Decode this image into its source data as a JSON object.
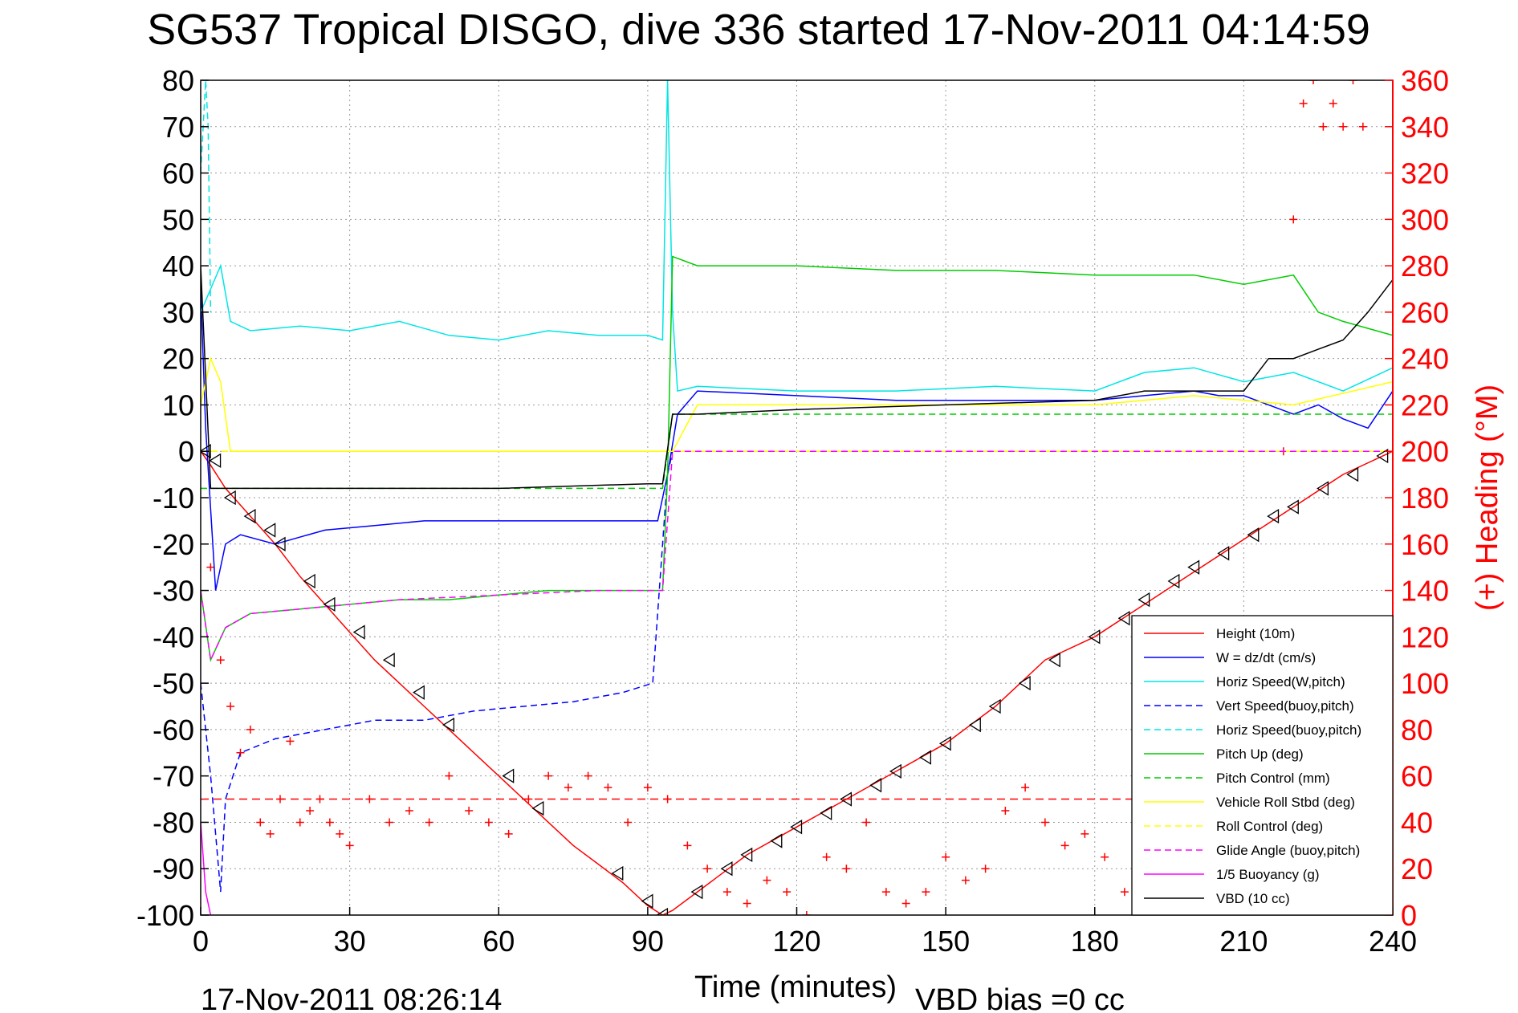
{
  "chart_data": {
    "type": "line",
    "title": "SG537 Tropical DISGO, dive 336 started 17-Nov-2011 04:14:59",
    "xlabel": "Time (minutes)",
    "ylabel": "",
    "y2label": "(+) Heading (°M)",
    "footer_left": "17-Nov-2011 08:26:14",
    "footer_right": "VBD bias =0 cc",
    "xlim": [
      0,
      240
    ],
    "ylim": [
      -100,
      80
    ],
    "y2lim": [
      0,
      360
    ],
    "xticks": [
      0,
      30,
      60,
      90,
      120,
      150,
      180,
      210,
      240
    ],
    "yticks": [
      80,
      70,
      60,
      50,
      40,
      30,
      20,
      10,
      0,
      -10,
      -20,
      -30,
      -40,
      -50,
      -60,
      -70,
      -80,
      -90,
      -100
    ],
    "y2ticks": [
      360,
      340,
      320,
      300,
      280,
      260,
      240,
      220,
      200,
      180,
      160,
      140,
      120,
      100,
      80,
      60,
      40,
      20,
      0
    ],
    "grid": true,
    "legend_position": "lower-right",
    "series": [
      {
        "name": "Height (10m)",
        "color": "#ff0000",
        "style": "solid",
        "x": [
          0,
          2,
          5,
          10,
          15,
          20,
          25,
          30,
          35,
          40,
          45,
          50,
          55,
          60,
          65,
          70,
          75,
          80,
          85,
          90,
          93,
          95,
          100,
          110,
          120,
          130,
          140,
          150,
          160,
          170,
          180,
          190,
          200,
          210,
          220,
          230,
          240
        ],
        "y": [
          0,
          -3,
          -8,
          -14,
          -20,
          -27,
          -33,
          -39,
          -45,
          -50,
          -55,
          -60,
          -65,
          -70,
          -75,
          -80,
          -85,
          -89,
          -93,
          -98,
          -100,
          -99,
          -95,
          -87,
          -81,
          -75,
          -69,
          -63,
          -55,
          -45,
          -40,
          -33,
          -26,
          -19,
          -12,
          -5,
          0
        ]
      },
      {
        "name": "W = dz/dt (cm/s)",
        "color": "#0000ff",
        "style": "solid",
        "x": [
          0,
          1,
          3,
          5,
          8,
          15,
          25,
          35,
          45,
          55,
          65,
          75,
          85,
          92,
          94,
          96,
          100,
          120,
          140,
          160,
          180,
          190,
          200,
          205,
          210,
          215,
          220,
          225,
          230,
          235,
          240
        ],
        "y": [
          35,
          5,
          -30,
          -20,
          -18,
          -20,
          -17,
          -16,
          -15,
          -15,
          -15,
          -15,
          -15,
          -15,
          -5,
          8,
          13,
          12,
          11,
          11,
          11,
          12,
          13,
          12,
          12,
          10,
          8,
          10,
          7,
          5,
          13
        ]
      },
      {
        "name": "Horiz Speed(W,pitch)",
        "color": "#00e5e5",
        "style": "solid",
        "x": [
          0,
          2,
          4,
          6,
          10,
          20,
          30,
          40,
          50,
          60,
          70,
          80,
          90,
          93,
          94,
          95,
          96,
          100,
          120,
          140,
          160,
          180,
          190,
          200,
          210,
          220,
          230,
          240
        ],
        "y": [
          30,
          35,
          40,
          28,
          26,
          27,
          26,
          28,
          25,
          24,
          26,
          25,
          25,
          24,
          80,
          30,
          13,
          14,
          13,
          13,
          14,
          13,
          17,
          18,
          15,
          17,
          13,
          18
        ]
      },
      {
        "name": "Vert Speed(buoy,pitch)",
        "color": "#0000ff",
        "style": "dashed",
        "x": [
          0,
          2,
          4,
          5,
          8,
          15,
          25,
          35,
          45,
          55,
          65,
          75,
          85,
          91,
          93,
          94,
          95
        ],
        "y": [
          -50,
          -70,
          -95,
          -75,
          -65,
          -62,
          -60,
          -58,
          -58,
          -56,
          -55,
          -54,
          -52,
          -50,
          -20,
          -5,
          0
        ]
      },
      {
        "name": "Horiz Speed(buoy,pitch)",
        "color": "#00e5e5",
        "style": "dashed",
        "x": [
          0,
          1,
          1.5,
          2
        ],
        "y": [
          60,
          80,
          70,
          30
        ]
      },
      {
        "name": "Pitch Up (deg)",
        "color": "#00cc00",
        "style": "solid",
        "x": [
          0,
          2,
          5,
          10,
          20,
          30,
          40,
          50,
          60,
          70,
          80,
          90,
          93,
          94,
          95,
          100,
          120,
          140,
          160,
          180,
          200,
          210,
          220,
          225,
          230,
          240
        ],
        "y": [
          -30,
          -45,
          -38,
          -35,
          -34,
          -33,
          -32,
          -32,
          -31,
          -30,
          -30,
          -30,
          -30,
          -5,
          42,
          40,
          40,
          39,
          39,
          38,
          38,
          36,
          38,
          30,
          28,
          25
        ]
      },
      {
        "name": "Pitch Control (mm)",
        "color": "#00cc00",
        "style": "dashed",
        "x": [
          0,
          2,
          10,
          30,
          60,
          90,
          93,
          95,
          100,
          140,
          180,
          220,
          240
        ],
        "y": [
          -8,
          -8,
          -8,
          -8,
          -8,
          -8,
          -8,
          8,
          8,
          8,
          8,
          8,
          8
        ]
      },
      {
        "name": "Vehicle Roll Stbd (deg)",
        "color": "#ffff00",
        "style": "solid",
        "x": [
          0,
          2,
          4,
          6,
          10,
          20,
          40,
          60,
          80,
          90,
          95,
          100,
          120,
          140,
          160,
          180,
          200,
          220,
          240
        ],
        "y": [
          10,
          20,
          15,
          0,
          0,
          0,
          0,
          0,
          0,
          0,
          0,
          10,
          10,
          10,
          10,
          10,
          12,
          10,
          15
        ]
      },
      {
        "name": "Roll Control (deg)",
        "color": "#ffff00",
        "style": "dashed",
        "x": [
          0,
          240
        ],
        "y": [
          0,
          0
        ]
      },
      {
        "name": "Glide Angle (buoy,pitch)",
        "color": "#ff00ff",
        "style": "dashed",
        "x": [
          0,
          2,
          5,
          10,
          20,
          40,
          60,
          80,
          90,
          93,
          95,
          100,
          240
        ],
        "y": [
          -30,
          -45,
          -38,
          -35,
          -34,
          -32,
          -31,
          -30,
          -30,
          -30,
          0,
          0,
          0
        ]
      },
      {
        "name": "1/5 Buoyancy (g)",
        "color": "#ff00ff",
        "style": "solid",
        "x": [
          0,
          1,
          2
        ],
        "y": [
          -80,
          -95,
          -100
        ]
      },
      {
        "name": "VBD (10 cc)",
        "color": "#000000",
        "style": "solid",
        "x": [
          0,
          2,
          10,
          30,
          60,
          90,
          93,
          95,
          100,
          120,
          150,
          180,
          190,
          210,
          215,
          220,
          225,
          230,
          235,
          240
        ],
        "y": [
          40,
          -8,
          -8,
          -8,
          -8,
          -7,
          -7,
          8,
          8,
          9,
          10,
          11,
          13,
          13,
          20,
          20,
          22,
          24,
          30,
          37
        ]
      }
    ],
    "heading_series": {
      "name": "Heading",
      "color": "#ff0000",
      "marker": "+",
      "axis": "right",
      "x": [
        2,
        4,
        6,
        8,
        10,
        12,
        14,
        16,
        18,
        20,
        22,
        24,
        26,
        28,
        30,
        34,
        38,
        42,
        46,
        50,
        54,
        58,
        62,
        66,
        70,
        74,
        78,
        82,
        86,
        90,
        94,
        98,
        102,
        106,
        110,
        114,
        118,
        122,
        126,
        130,
        134,
        138,
        142,
        146,
        150,
        154,
        158,
        162,
        166,
        170,
        174,
        178,
        182,
        186,
        190,
        194,
        198,
        202,
        206,
        210,
        214,
        216,
        218,
        220,
        222,
        224,
        226,
        228,
        230,
        232,
        234,
        236,
        238,
        240
      ],
      "y": [
        150,
        110,
        90,
        70,
        80,
        40,
        35,
        50,
        75,
        40,
        45,
        50,
        40,
        35,
        30,
        50,
        40,
        45,
        40,
        60,
        45,
        40,
        35,
        50,
        60,
        55,
        60,
        55,
        40,
        55,
        50,
        30,
        20,
        10,
        5,
        15,
        10,
        0,
        25,
        20,
        40,
        10,
        5,
        10,
        25,
        15,
        20,
        45,
        55,
        40,
        30,
        35,
        25,
        10,
        5,
        35,
        50,
        40,
        30,
        25,
        20,
        60,
        200,
        300,
        350,
        360,
        340,
        350,
        340,
        360,
        340,
        40,
        50,
        60
      ]
    },
    "depth_markers": {
      "marker": "triangle",
      "color": "#000000",
      "x": [
        1,
        3,
        6,
        10,
        14,
        16,
        22,
        26,
        32,
        38,
        44,
        50,
        62,
        68,
        84,
        90,
        93,
        100,
        106,
        110,
        116,
        120,
        126,
        130,
        136,
        140,
        146,
        150,
        156,
        160,
        166,
        172,
        180,
        186,
        190,
        196,
        200,
        206,
        212,
        216,
        220,
        226,
        232,
        238
      ],
      "y": [
        0,
        -2,
        -10,
        -14,
        -17,
        -20,
        -28,
        -33,
        -39,
        -45,
        -52,
        -59,
        -70,
        -77,
        -91,
        -97,
        -100,
        -95,
        -90,
        -87,
        -84,
        -81,
        -78,
        -75,
        -72,
        -69,
        -66,
        -63,
        -59,
        -55,
        -50,
        -45,
        -40,
        -36,
        -32,
        -28,
        -25,
        -22,
        -18,
        -14,
        -12,
        -8,
        -5,
        -1
      ]
    },
    "reference_line": {
      "color": "#ff0000",
      "style": "dashed",
      "y2": 50
    }
  }
}
